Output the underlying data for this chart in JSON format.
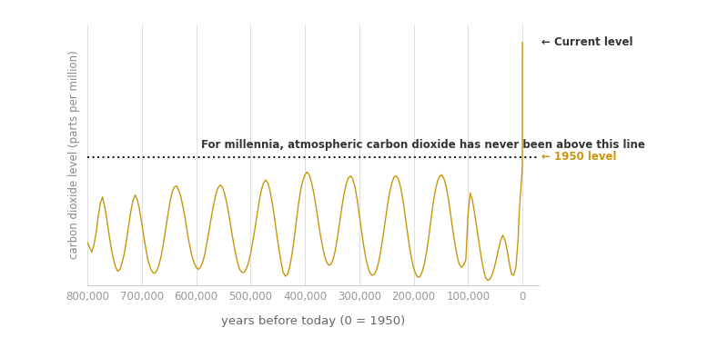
{
  "xlabel": "years before today (0 = 1950)",
  "ylabel": "carbon dioxide level (parts per million)",
  "line_color": "#C8960C",
  "dashed_line_color": "#222222",
  "background_color": "#ffffff",
  "annotation_line_text": "For millennia, atmospheric carbon dioxide has never been above this line",
  "annotation_current": "← Current level",
  "annotation_1950": "← 1950 level",
  "xlim": [
    800000,
    -30000
  ],
  "ylim": [
    170,
    430
  ],
  "dashed_y": 298,
  "co2_data": [
    [
      800000,
      213
    ],
    [
      796000,
      208
    ],
    [
      792000,
      203
    ],
    [
      788000,
      210
    ],
    [
      784000,
      222
    ],
    [
      780000,
      239
    ],
    [
      776000,
      252
    ],
    [
      772000,
      258
    ],
    [
      768000,
      248
    ],
    [
      764000,
      235
    ],
    [
      760000,
      220
    ],
    [
      756000,
      207
    ],
    [
      752000,
      196
    ],
    [
      748000,
      188
    ],
    [
      744000,
      184
    ],
    [
      740000,
      186
    ],
    [
      736000,
      193
    ],
    [
      732000,
      202
    ],
    [
      728000,
      215
    ],
    [
      724000,
      230
    ],
    [
      720000,
      244
    ],
    [
      716000,
      255
    ],
    [
      712000,
      260
    ],
    [
      708000,
      255
    ],
    [
      704000,
      245
    ],
    [
      700000,
      232
    ],
    [
      696000,
      218
    ],
    [
      692000,
      205
    ],
    [
      688000,
      194
    ],
    [
      684000,
      187
    ],
    [
      680000,
      183
    ],
    [
      676000,
      182
    ],
    [
      672000,
      185
    ],
    [
      668000,
      191
    ],
    [
      664000,
      200
    ],
    [
      660000,
      212
    ],
    [
      656000,
      226
    ],
    [
      652000,
      240
    ],
    [
      648000,
      253
    ],
    [
      644000,
      263
    ],
    [
      640000,
      268
    ],
    [
      636000,
      269
    ],
    [
      632000,
      265
    ],
    [
      628000,
      258
    ],
    [
      624000,
      248
    ],
    [
      620000,
      236
    ],
    [
      616000,
      222
    ],
    [
      612000,
      210
    ],
    [
      608000,
      200
    ],
    [
      604000,
      193
    ],
    [
      600000,
      188
    ],
    [
      596000,
      186
    ],
    [
      592000,
      188
    ],
    [
      588000,
      193
    ],
    [
      584000,
      201
    ],
    [
      580000,
      213
    ],
    [
      576000,
      225
    ],
    [
      572000,
      238
    ],
    [
      568000,
      250
    ],
    [
      564000,
      260
    ],
    [
      560000,
      267
    ],
    [
      556000,
      270
    ],
    [
      552000,
      268
    ],
    [
      548000,
      262
    ],
    [
      544000,
      253
    ],
    [
      540000,
      241
    ],
    [
      536000,
      228
    ],
    [
      532000,
      215
    ],
    [
      528000,
      203
    ],
    [
      524000,
      193
    ],
    [
      520000,
      186
    ],
    [
      516000,
      183
    ],
    [
      512000,
      183
    ],
    [
      508000,
      186
    ],
    [
      504000,
      192
    ],
    [
      500000,
      201
    ],
    [
      496000,
      213
    ],
    [
      492000,
      226
    ],
    [
      488000,
      240
    ],
    [
      484000,
      254
    ],
    [
      480000,
      265
    ],
    [
      476000,
      272
    ],
    [
      472000,
      275
    ],
    [
      468000,
      272
    ],
    [
      464000,
      264
    ],
    [
      460000,
      252
    ],
    [
      456000,
      238
    ],
    [
      452000,
      222
    ],
    [
      448000,
      207
    ],
    [
      444000,
      194
    ],
    [
      440000,
      183
    ],
    [
      436000,
      179
    ],
    [
      432000,
      181
    ],
    [
      428000,
      188
    ],
    [
      424000,
      200
    ],
    [
      420000,
      215
    ],
    [
      416000,
      233
    ],
    [
      412000,
      250
    ],
    [
      408000,
      264
    ],
    [
      404000,
      274
    ],
    [
      400000,
      280
    ],
    [
      396000,
      283
    ],
    [
      392000,
      280
    ],
    [
      388000,
      273
    ],
    [
      384000,
      263
    ],
    [
      380000,
      250
    ],
    [
      376000,
      236
    ],
    [
      372000,
      222
    ],
    [
      368000,
      210
    ],
    [
      364000,
      200
    ],
    [
      360000,
      193
    ],
    [
      356000,
      190
    ],
    [
      352000,
      191
    ],
    [
      348000,
      196
    ],
    [
      344000,
      205
    ],
    [
      340000,
      218
    ],
    [
      336000,
      233
    ],
    [
      332000,
      248
    ],
    [
      328000,
      261
    ],
    [
      324000,
      271
    ],
    [
      320000,
      277
    ],
    [
      316000,
      279
    ],
    [
      312000,
      276
    ],
    [
      308000,
      268
    ],
    [
      304000,
      256
    ],
    [
      300000,
      241
    ],
    [
      296000,
      225
    ],
    [
      292000,
      210
    ],
    [
      288000,
      197
    ],
    [
      284000,
      188
    ],
    [
      280000,
      182
    ],
    [
      276000,
      180
    ],
    [
      272000,
      181
    ],
    [
      268000,
      186
    ],
    [
      264000,
      194
    ],
    [
      260000,
      206
    ],
    [
      256000,
      220
    ],
    [
      252000,
      235
    ],
    [
      248000,
      250
    ],
    [
      244000,
      263
    ],
    [
      240000,
      272
    ],
    [
      236000,
      278
    ],
    [
      232000,
      279
    ],
    [
      228000,
      276
    ],
    [
      224000,
      268
    ],
    [
      220000,
      256
    ],
    [
      216000,
      241
    ],
    [
      212000,
      225
    ],
    [
      208000,
      210
    ],
    [
      204000,
      197
    ],
    [
      200000,
      187
    ],
    [
      196000,
      181
    ],
    [
      192000,
      178
    ],
    [
      188000,
      179
    ],
    [
      184000,
      184
    ],
    [
      180000,
      192
    ],
    [
      176000,
      204
    ],
    [
      172000,
      219
    ],
    [
      168000,
      236
    ],
    [
      164000,
      252
    ],
    [
      160000,
      265
    ],
    [
      156000,
      274
    ],
    [
      152000,
      279
    ],
    [
      148000,
      280
    ],
    [
      144000,
      276
    ],
    [
      140000,
      268
    ],
    [
      136000,
      256
    ],
    [
      132000,
      241
    ],
    [
      128000,
      225
    ],
    [
      124000,
      211
    ],
    [
      120000,
      199
    ],
    [
      116000,
      191
    ],
    [
      112000,
      188
    ],
    [
      108000,
      190
    ],
    [
      104000,
      196
    ],
    [
      100000,
      241
    ],
    [
      96000,
      262
    ],
    [
      92000,
      255
    ],
    [
      88000,
      242
    ],
    [
      84000,
      228
    ],
    [
      80000,
      213
    ],
    [
      76000,
      199
    ],
    [
      72000,
      187
    ],
    [
      68000,
      178
    ],
    [
      64000,
      175
    ],
    [
      60000,
      176
    ],
    [
      56000,
      180
    ],
    [
      52000,
      187
    ],
    [
      48000,
      196
    ],
    [
      44000,
      206
    ],
    [
      40000,
      215
    ],
    [
      36000,
      220
    ],
    [
      32000,
      215
    ],
    [
      28000,
      205
    ],
    [
      24000,
      192
    ],
    [
      20000,
      181
    ],
    [
      16000,
      180
    ],
    [
      12000,
      188
    ],
    [
      8000,
      215
    ],
    [
      6000,
      240
    ],
    [
      4000,
      258
    ],
    [
      2000,
      272
    ],
    [
      1000,
      280
    ],
    [
      500,
      285
    ],
    [
      200,
      290
    ],
    [
      100,
      298
    ],
    [
      50,
      310
    ],
    [
      30,
      340
    ],
    [
      20,
      365
    ],
    [
      10,
      385
    ],
    [
      0,
      412
    ]
  ]
}
